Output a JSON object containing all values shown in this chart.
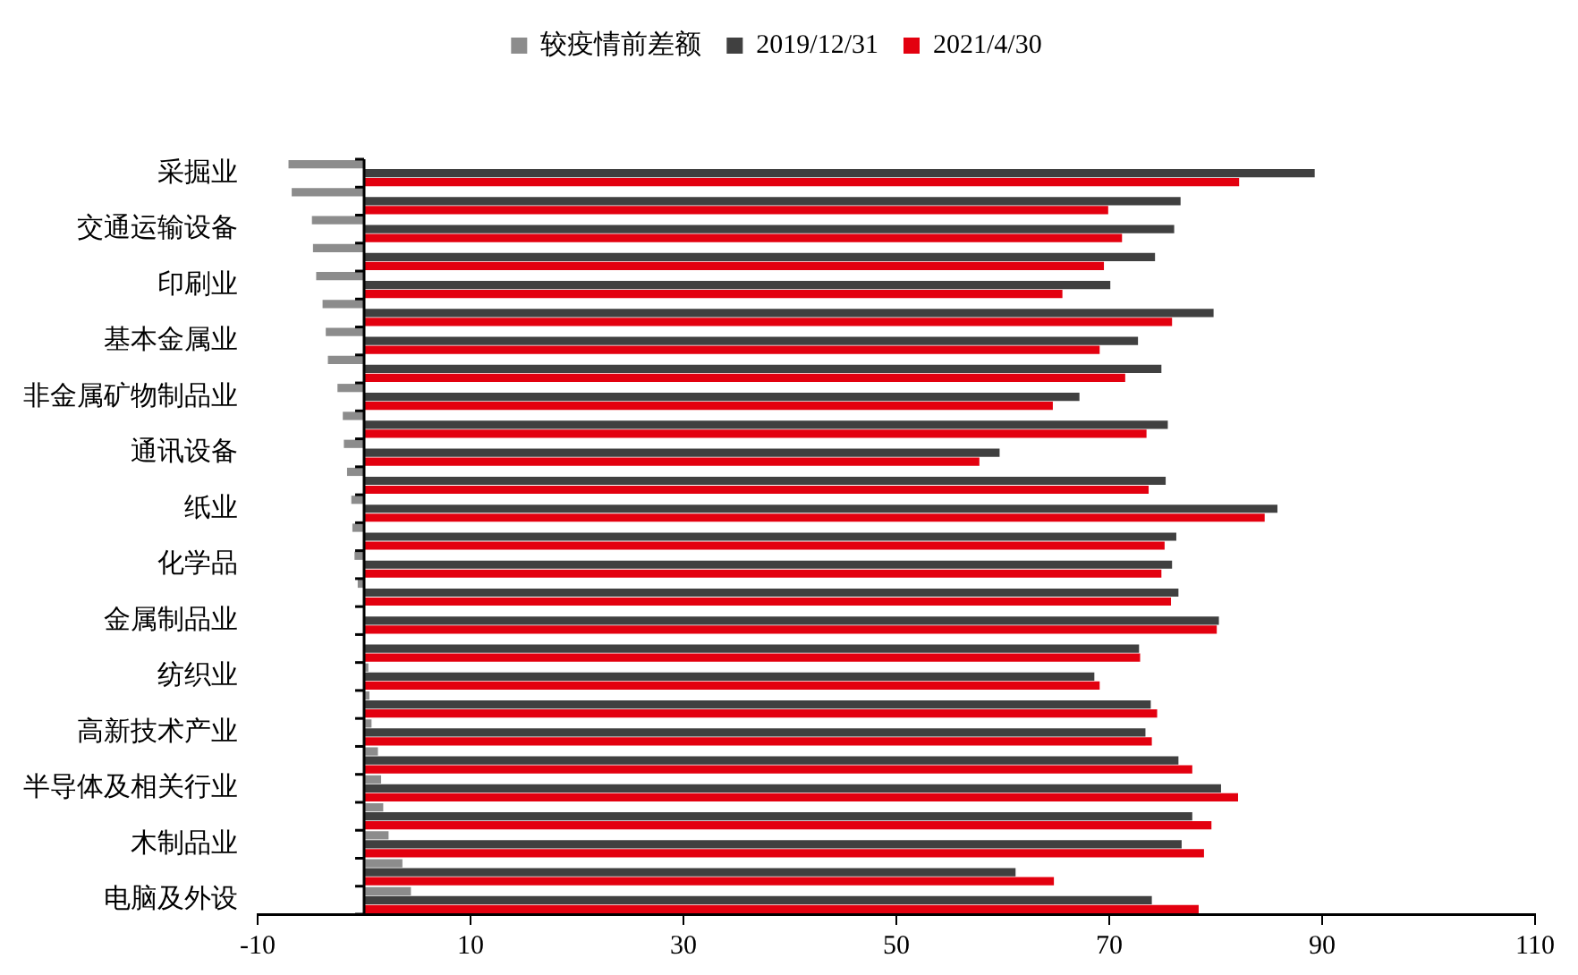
{
  "chart_data": {
    "type": "bar",
    "orientation": "horizontal",
    "categories": [
      "采掘业",
      null,
      "交通运输设备",
      null,
      "印刷业",
      null,
      "基本金属业",
      null,
      "非金属矿物制品业",
      null,
      "通讯设备",
      null,
      "纸业",
      null,
      "化学品",
      null,
      "金属制品业",
      null,
      "纺织业",
      null,
      "高新技术产业",
      null,
      "半导体及相关行业",
      null,
      "木制品业",
      null,
      "电脑及外设"
    ],
    "series": [
      {
        "name": "较疫情前差额",
        "color": "#8c8c8c",
        "values": [
          -7.1,
          -6.8,
          -4.9,
          -4.8,
          -4.5,
          -3.9,
          -3.6,
          -3.4,
          -2.5,
          -2.0,
          -1.9,
          -1.6,
          -1.2,
          -1.1,
          -0.9,
          -0.6,
          null,
          null,
          0.4,
          0.5,
          0.7,
          1.3,
          1.6,
          1.8,
          2.3,
          3.6,
          4.4
        ]
      },
      {
        "name": "2019/12/31",
        "color": "#404040",
        "values": [
          89.3,
          76.7,
          76.1,
          74.3,
          70.1,
          79.8,
          72.7,
          74.9,
          67.2,
          75.5,
          59.7,
          75.3,
          85.8,
          76.3,
          75.9,
          76.5,
          80.3,
          72.8,
          68.6,
          73.9,
          73.4,
          76.5,
          80.5,
          77.8,
          76.8,
          61.2,
          74.0
        ]
      },
      {
        "name": "2021/4/30",
        "color": "#e3000f",
        "values": [
          82.2,
          69.9,
          71.2,
          69.5,
          65.6,
          75.9,
          69.1,
          71.5,
          64.7,
          73.5,
          57.8,
          73.7,
          84.6,
          75.2,
          74.9,
          75.8,
          80.1,
          72.9,
          69.1,
          74.5,
          74.0,
          77.8,
          82.1,
          79.6,
          78.9,
          64.8,
          78.4
        ]
      }
    ],
    "xlim": [
      -10,
      110
    ],
    "xticks": [
      -10,
      10,
      30,
      50,
      70,
      90,
      110
    ],
    "ref_lines": [
      {
        "axis": "x",
        "value": 0,
        "color": "#000000"
      }
    ],
    "grid": false,
    "legend": "top"
  }
}
